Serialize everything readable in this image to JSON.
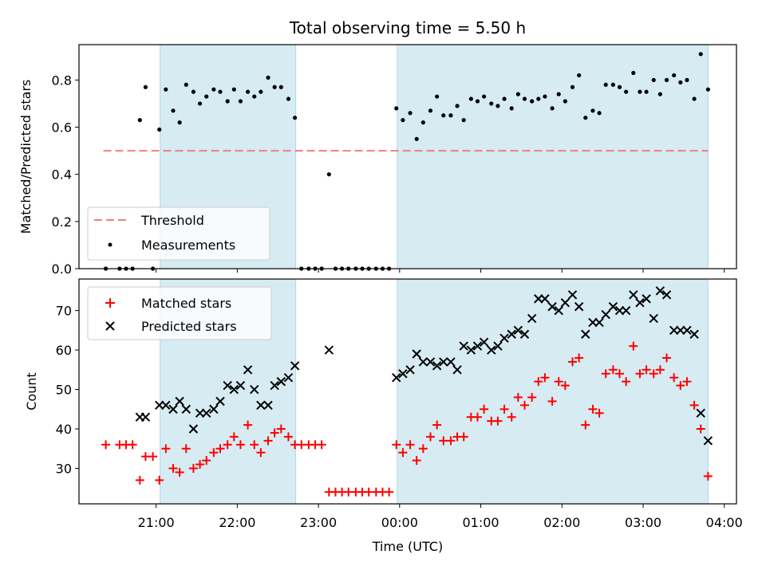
{
  "chart_data": [
    {
      "type": "scatter",
      "title": "Total observing time = 5.50 h",
      "xlabel": "",
      "ylabel": "Matched/Predicted stars",
      "ylim": [
        0,
        0.95
      ],
      "xlim": [
        20.05,
        28.15
      ],
      "yticks": [
        "0.0",
        "0.2",
        "0.4",
        "0.6",
        "0.8"
      ],
      "legend": {
        "position": "lower-left",
        "entries": [
          "Threshold",
          "Measurements"
        ]
      },
      "shaded_intervals": [
        [
          21.05,
          22.72
        ],
        [
          23.97,
          27.8
        ]
      ],
      "threshold": {
        "name": "Threshold",
        "value": 0.5,
        "x": [
          20.35,
          27.8
        ],
        "color": "#f07f7f"
      },
      "series": [
        {
          "name": "Measurements",
          "color": "#000000",
          "points": [
            [
              20.38,
              0.0
            ],
            [
              20.55,
              0.0
            ],
            [
              20.63,
              0.0
            ],
            [
              20.71,
              0.0
            ],
            [
              20.8,
              0.63
            ],
            [
              20.87,
              0.77
            ],
            [
              20.96,
              0.0
            ],
            [
              21.04,
              0.59
            ],
            [
              21.12,
              0.76
            ],
            [
              21.21,
              0.67
            ],
            [
              21.29,
              0.62
            ],
            [
              21.37,
              0.78
            ],
            [
              21.46,
              0.75
            ],
            [
              21.54,
              0.7
            ],
            [
              21.62,
              0.73
            ],
            [
              21.71,
              0.76
            ],
            [
              21.79,
              0.75
            ],
            [
              21.88,
              0.71
            ],
            [
              21.96,
              0.76
            ],
            [
              22.04,
              0.71
            ],
            [
              22.13,
              0.75
            ],
            [
              22.21,
              0.73
            ],
            [
              22.29,
              0.75
            ],
            [
              22.38,
              0.81
            ],
            [
              22.46,
              0.77
            ],
            [
              22.54,
              0.77
            ],
            [
              22.63,
              0.72
            ],
            [
              22.71,
              0.64
            ],
            [
              22.79,
              0.0
            ],
            [
              22.88,
              0.0
            ],
            [
              22.96,
              0.0
            ],
            [
              23.04,
              0.0
            ],
            [
              23.13,
              0.4
            ],
            [
              23.21,
              0.0
            ],
            [
              23.29,
              0.0
            ],
            [
              23.37,
              0.0
            ],
            [
              23.46,
              0.0
            ],
            [
              23.54,
              0.0
            ],
            [
              23.62,
              0.0
            ],
            [
              23.71,
              0.0
            ],
            [
              23.79,
              0.0
            ],
            [
              23.87,
              0.0
            ],
            [
              23.96,
              0.68
            ],
            [
              24.04,
              0.63
            ],
            [
              24.13,
              0.66
            ],
            [
              24.21,
              0.55
            ],
            [
              24.29,
              0.62
            ],
            [
              24.38,
              0.67
            ],
            [
              24.46,
              0.73
            ],
            [
              24.54,
              0.65
            ],
            [
              24.63,
              0.65
            ],
            [
              24.71,
              0.69
            ],
            [
              24.79,
              0.63
            ],
            [
              24.88,
              0.72
            ],
            [
              24.96,
              0.71
            ],
            [
              25.04,
              0.73
            ],
            [
              25.13,
              0.7
            ],
            [
              25.21,
              0.69
            ],
            [
              25.29,
              0.72
            ],
            [
              25.38,
              0.68
            ],
            [
              25.46,
              0.74
            ],
            [
              25.54,
              0.72
            ],
            [
              25.63,
              0.71
            ],
            [
              25.71,
              0.72
            ],
            [
              25.79,
              0.73
            ],
            [
              25.88,
              0.68
            ],
            [
              25.96,
              0.74
            ],
            [
              26.04,
              0.71
            ],
            [
              26.13,
              0.77
            ],
            [
              26.21,
              0.82
            ],
            [
              26.29,
              0.64
            ],
            [
              26.38,
              0.67
            ],
            [
              26.46,
              0.66
            ],
            [
              26.54,
              0.78
            ],
            [
              26.63,
              0.78
            ],
            [
              26.71,
              0.77
            ],
            [
              26.79,
              0.75
            ],
            [
              26.88,
              0.83
            ],
            [
              26.96,
              0.75
            ],
            [
              27.04,
              0.75
            ],
            [
              27.13,
              0.8
            ],
            [
              27.21,
              0.74
            ],
            [
              27.29,
              0.8
            ],
            [
              27.38,
              0.82
            ],
            [
              27.46,
              0.79
            ],
            [
              27.54,
              0.8
            ],
            [
              27.63,
              0.72
            ],
            [
              27.71,
              0.91
            ],
            [
              27.8,
              0.76
            ]
          ]
        }
      ]
    },
    {
      "type": "scatter",
      "title": "",
      "xlabel": "Time (UTC)",
      "ylabel": "Count",
      "ylim": [
        21,
        78
      ],
      "xlim": [
        20.05,
        28.15
      ],
      "yticks": [
        "30",
        "40",
        "50",
        "60",
        "70"
      ],
      "xticks": [
        "21:00",
        "22:00",
        "23:00",
        "00:00",
        "01:00",
        "02:00",
        "03:00",
        "04:00"
      ],
      "legend": {
        "position": "top-left",
        "entries": [
          "Matched stars",
          "Predicted stars"
        ]
      },
      "shaded_intervals": [
        [
          21.05,
          22.72
        ],
        [
          23.97,
          27.8
        ]
      ],
      "series": [
        {
          "name": "Matched stars",
          "marker": "+",
          "color": "#ff0000",
          "points": [
            [
              20.38,
              36
            ],
            [
              20.55,
              36
            ],
            [
              20.63,
              36
            ],
            [
              20.71,
              36
            ],
            [
              20.8,
              27
            ],
            [
              20.87,
              33
            ],
            [
              20.96,
              33
            ],
            [
              21.04,
              27
            ],
            [
              21.12,
              35
            ],
            [
              21.21,
              30
            ],
            [
              21.29,
              29
            ],
            [
              21.37,
              35
            ],
            [
              21.46,
              30
            ],
            [
              21.54,
              31
            ],
            [
              21.62,
              32
            ],
            [
              21.71,
              34
            ],
            [
              21.79,
              35
            ],
            [
              21.88,
              36
            ],
            [
              21.96,
              38
            ],
            [
              22.04,
              36
            ],
            [
              22.13,
              41
            ],
            [
              22.21,
              36
            ],
            [
              22.29,
              34
            ],
            [
              22.38,
              37
            ],
            [
              22.46,
              39
            ],
            [
              22.54,
              40
            ],
            [
              22.63,
              38
            ],
            [
              22.71,
              36
            ],
            [
              22.79,
              36
            ],
            [
              22.88,
              36
            ],
            [
              22.96,
              36
            ],
            [
              23.04,
              36
            ],
            [
              23.13,
              24
            ],
            [
              23.21,
              24
            ],
            [
              23.29,
              24
            ],
            [
              23.37,
              24
            ],
            [
              23.46,
              24
            ],
            [
              23.54,
              24
            ],
            [
              23.62,
              24
            ],
            [
              23.71,
              24
            ],
            [
              23.79,
              24
            ],
            [
              23.87,
              24
            ],
            [
              23.96,
              36
            ],
            [
              24.04,
              34
            ],
            [
              24.13,
              36
            ],
            [
              24.21,
              32
            ],
            [
              24.29,
              35
            ],
            [
              24.38,
              38
            ],
            [
              24.46,
              41
            ],
            [
              24.54,
              37
            ],
            [
              24.63,
              37
            ],
            [
              24.71,
              38
            ],
            [
              24.79,
              38
            ],
            [
              24.88,
              43
            ],
            [
              24.96,
              43
            ],
            [
              25.04,
              45
            ],
            [
              25.13,
              42
            ],
            [
              25.21,
              42
            ],
            [
              25.29,
              45
            ],
            [
              25.38,
              43
            ],
            [
              25.46,
              48
            ],
            [
              25.54,
              46
            ],
            [
              25.63,
              48
            ],
            [
              25.71,
              52
            ],
            [
              25.79,
              53
            ],
            [
              25.88,
              47
            ],
            [
              25.96,
              52
            ],
            [
              26.04,
              51
            ],
            [
              26.13,
              57
            ],
            [
              26.21,
              58
            ],
            [
              26.29,
              41
            ],
            [
              26.38,
              45
            ],
            [
              26.46,
              44
            ],
            [
              26.54,
              54
            ],
            [
              26.63,
              55
            ],
            [
              26.71,
              54
            ],
            [
              26.79,
              52
            ],
            [
              26.88,
              61
            ],
            [
              26.96,
              54
            ],
            [
              27.04,
              55
            ],
            [
              27.13,
              54
            ],
            [
              27.21,
              55
            ],
            [
              27.29,
              58
            ],
            [
              27.38,
              53
            ],
            [
              27.46,
              51
            ],
            [
              27.54,
              52
            ],
            [
              27.63,
              46
            ],
            [
              27.71,
              40
            ],
            [
              27.8,
              28
            ]
          ]
        },
        {
          "name": "Predicted stars",
          "marker": "x",
          "color": "#000000",
          "points": [
            [
              20.8,
              43
            ],
            [
              20.87,
              43
            ],
            [
              21.04,
              46
            ],
            [
              21.12,
              46
            ],
            [
              21.21,
              45
            ],
            [
              21.29,
              47
            ],
            [
              21.37,
              45
            ],
            [
              21.46,
              40
            ],
            [
              21.54,
              44
            ],
            [
              21.62,
              44
            ],
            [
              21.71,
              45
            ],
            [
              21.79,
              47
            ],
            [
              21.88,
              51
            ],
            [
              21.96,
              50
            ],
            [
              22.04,
              51
            ],
            [
              22.13,
              55
            ],
            [
              22.21,
              50
            ],
            [
              22.29,
              46
            ],
            [
              22.38,
              46
            ],
            [
              22.46,
              51
            ],
            [
              22.54,
              52
            ],
            [
              22.63,
              53
            ],
            [
              22.71,
              56
            ],
            [
              23.13,
              60
            ],
            [
              23.96,
              53
            ],
            [
              24.04,
              54
            ],
            [
              24.13,
              55
            ],
            [
              24.21,
              59
            ],
            [
              24.29,
              57
            ],
            [
              24.38,
              57
            ],
            [
              24.46,
              56
            ],
            [
              24.54,
              57
            ],
            [
              24.63,
              57
            ],
            [
              24.71,
              55
            ],
            [
              24.79,
              61
            ],
            [
              24.88,
              60
            ],
            [
              24.96,
              61
            ],
            [
              25.04,
              62
            ],
            [
              25.13,
              60
            ],
            [
              25.21,
              61
            ],
            [
              25.29,
              63
            ],
            [
              25.38,
              64
            ],
            [
              25.46,
              65
            ],
            [
              25.54,
              64
            ],
            [
              25.63,
              68
            ],
            [
              25.71,
              73
            ],
            [
              25.79,
              73
            ],
            [
              25.88,
              71
            ],
            [
              25.96,
              70
            ],
            [
              26.04,
              72
            ],
            [
              26.13,
              74
            ],
            [
              26.21,
              71
            ],
            [
              26.29,
              64
            ],
            [
              26.38,
              67
            ],
            [
              26.46,
              67
            ],
            [
              26.54,
              69
            ],
            [
              26.63,
              71
            ],
            [
              26.71,
              70
            ],
            [
              26.79,
              70
            ],
            [
              26.88,
              74
            ],
            [
              26.96,
              72
            ],
            [
              27.04,
              73
            ],
            [
              27.13,
              68
            ],
            [
              27.21,
              75
            ],
            [
              27.29,
              74
            ],
            [
              27.38,
              65
            ],
            [
              27.46,
              65
            ],
            [
              27.54,
              65
            ],
            [
              27.63,
              64
            ],
            [
              27.71,
              44
            ],
            [
              27.8,
              37
            ]
          ]
        }
      ]
    }
  ]
}
